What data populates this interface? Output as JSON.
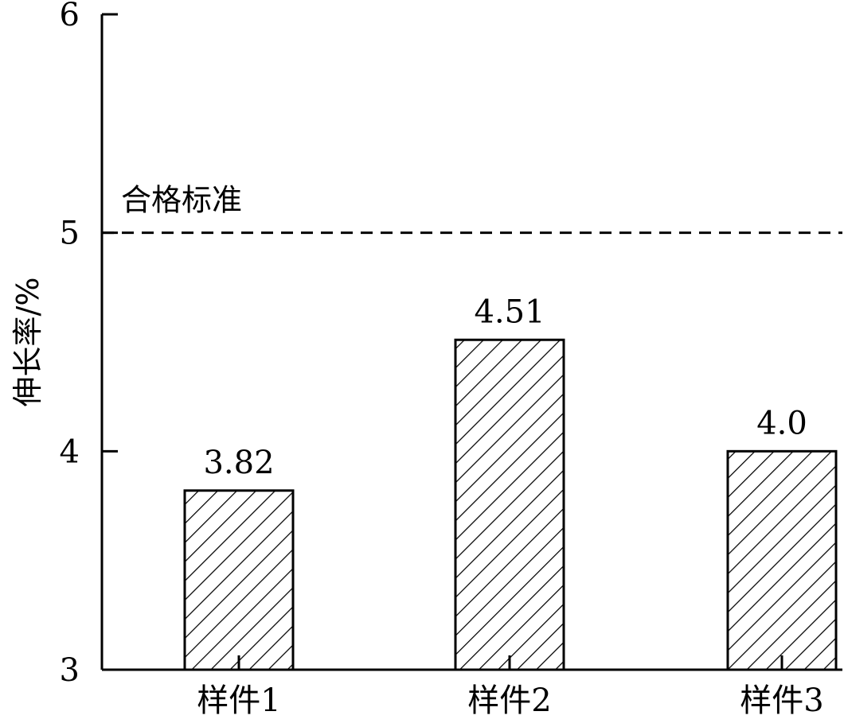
{
  "chart_data": {
    "type": "bar",
    "categories": [
      "样件1",
      "样件2",
      "样件3"
    ],
    "values": [
      3.82,
      4.51,
      4.0
    ],
    "value_labels": [
      "3.82",
      "4.51",
      "4.0"
    ],
    "ylabel": "伸长率/%",
    "xlabel": "",
    "ylim": [
      3,
      6
    ],
    "yticks": [
      3,
      4,
      5,
      6
    ],
    "ytick_labels": [
      "3",
      "4",
      "5",
      "6"
    ],
    "reference_line": {
      "value": 5,
      "label": "合格标准",
      "style": "dashed"
    },
    "bar_fill": "hatched",
    "bar_color": "#000000",
    "grid": false,
    "legend": "none"
  }
}
